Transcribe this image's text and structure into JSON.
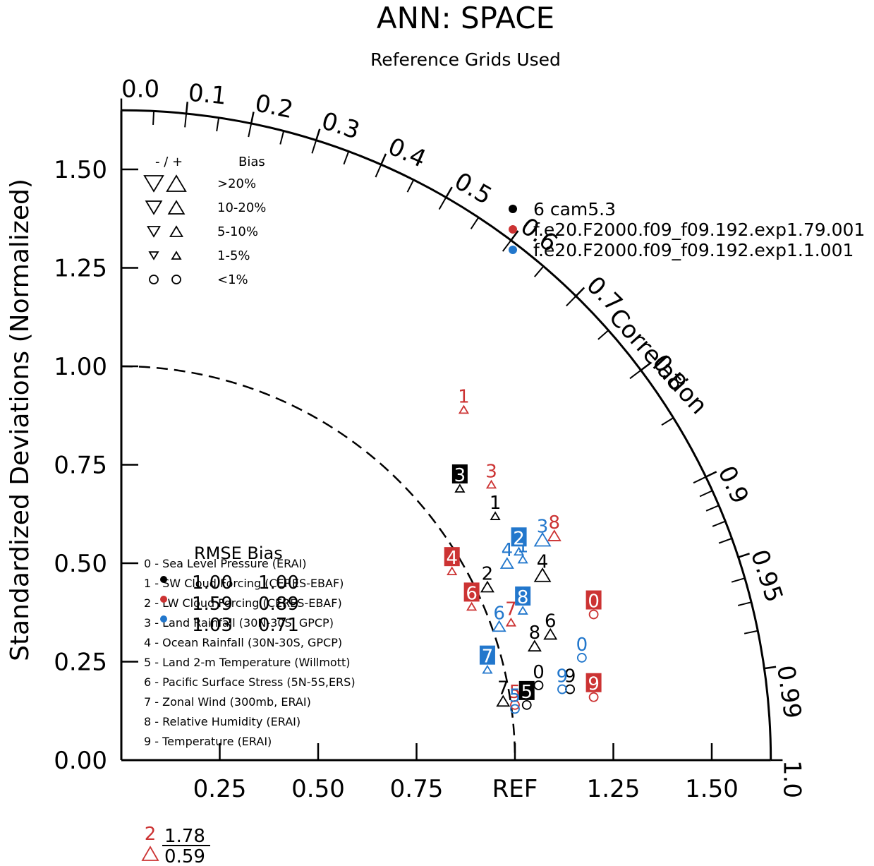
{
  "chart_data": {
    "type": "taylor",
    "title": "ANN: SPACE",
    "subtitle": "Reference Grids Used",
    "ylabel": "Standardized Deviations (Normalized)",
    "axis_max": 1.65,
    "y_ticks": [
      "0.00",
      "0.25",
      "0.50",
      "0.75",
      "1.00",
      "1.25",
      "1.50"
    ],
    "x_ticks": [
      "0.25",
      "0.50",
      "0.75",
      "REF",
      "1.25",
      "1.50"
    ],
    "correlation_label": "Correlation",
    "correlation_ticks": [
      {
        "r": 0.0,
        "label": "0.0"
      },
      {
        "r": 0.1,
        "label": "0.1"
      },
      {
        "r": 0.2,
        "label": "0.2"
      },
      {
        "r": 0.3,
        "label": "0.3"
      },
      {
        "r": 0.4,
        "label": "0.4"
      },
      {
        "r": 0.5,
        "label": "0.5"
      },
      {
        "r": 0.6,
        "label": "0.6"
      },
      {
        "r": 0.7,
        "label": "0.7"
      },
      {
        "r": 0.8,
        "label": "0.8"
      },
      {
        "r": 0.9,
        "label": "0.9"
      },
      {
        "r": 0.95,
        "label": "0.95"
      },
      {
        "r": 0.99,
        "label": "0.99"
      },
      {
        "r": 1.0,
        "label": "1.0"
      }
    ],
    "series": [
      {
        "name": "6 cam5.3",
        "color": "#000000"
      },
      {
        "name": "f.e20.F2000.f09_f09.192.exp1.79.001",
        "color": "#cc3333"
      },
      {
        "name": "f.e20.F2000.f09_f09.192.exp1.1.001",
        "color": "#2277cc"
      }
    ],
    "variables": [
      "0 - Sea Level Pressure (ERAI)",
      "1 - SW Cloud Forcing (CERES-EBAF)",
      "2 - LW Cloud Forcing (CERES-EBAF)",
      "3 - Land Rainfall (30N-30S, GPCP)",
      "4 - Ocean Rainfall (30N-30S, GPCP)",
      "5 - Land 2-m Temperature (Willmott)",
      "6 - Pacific Surface Stress (5N-5S,ERS)",
      "7 - Zonal Wind (300mb, ERAI)",
      "8 - Relative Humidity (ERAI)",
      "9 - Temperature (ERAI)"
    ],
    "bias_legend": {
      "header_sign": "- / +",
      "header_bias": "Bias",
      "rows": [
        ">20%",
        "10-20%",
        "5-10%",
        "1-5%",
        "<1%"
      ]
    },
    "rmse_table": {
      "header": "RMSE Bias",
      "rows": [
        {
          "rmse": "1.00",
          "bias": "1.00"
        },
        {
          "rmse": "1.59",
          "bias": "0.89"
        },
        {
          "rmse": "1.03",
          "bias": "0.71"
        }
      ]
    },
    "offscale": {
      "label": "2",
      "rmse": "1.78",
      "bias": "0.59"
    },
    "points": [
      {
        "s": 0,
        "v": "0",
        "x": 1.06,
        "y": 0.19,
        "box": false,
        "m": "circle"
      },
      {
        "s": 0,
        "v": "1",
        "x": 0.95,
        "y": 0.62,
        "box": false,
        "m": "tri-up-small"
      },
      {
        "s": 0,
        "v": "2",
        "x": 0.93,
        "y": 0.44,
        "box": false,
        "m": "tri-up"
      },
      {
        "s": 0,
        "v": "3",
        "x": 0.86,
        "y": 0.69,
        "box": true,
        "m": "tri-up-small"
      },
      {
        "s": 0,
        "v": "4",
        "x": 1.07,
        "y": 0.47,
        "box": false,
        "m": "tri-up-large"
      },
      {
        "s": 0,
        "v": "5",
        "x": 1.03,
        "y": 0.14,
        "box": true,
        "m": "circle"
      },
      {
        "s": 0,
        "v": "6",
        "x": 1.09,
        "y": 0.32,
        "box": false,
        "m": "tri-up"
      },
      {
        "s": 0,
        "v": "7",
        "x": 0.97,
        "y": 0.15,
        "box": false,
        "m": "tri-up"
      },
      {
        "s": 0,
        "v": "8",
        "x": 1.05,
        "y": 0.29,
        "box": false,
        "m": "tri-up"
      },
      {
        "s": 0,
        "v": "9",
        "x": 1.14,
        "y": 0.18,
        "box": false,
        "m": "circle"
      },
      {
        "s": 1,
        "v": "0",
        "x": 1.2,
        "y": 0.37,
        "box": true,
        "m": "circle"
      },
      {
        "s": 1,
        "v": "1",
        "x": 0.87,
        "y": 0.89,
        "box": false,
        "m": "tri-up-small"
      },
      {
        "s": 1,
        "v": "2",
        "x": 0.21,
        "y": -0.2,
        "box": false,
        "m": "none"
      },
      {
        "s": 1,
        "v": "3",
        "x": 0.94,
        "y": 0.7,
        "box": false,
        "m": "tri-up-small"
      },
      {
        "s": 1,
        "v": "4",
        "x": 0.84,
        "y": 0.48,
        "box": true,
        "m": "tri-up-small"
      },
      {
        "s": 1,
        "v": "5",
        "x": 1.0,
        "y": 0.14,
        "box": false,
        "m": "circle"
      },
      {
        "s": 1,
        "v": "6",
        "x": 0.89,
        "y": 0.39,
        "box": true,
        "m": "tri-up-small"
      },
      {
        "s": 1,
        "v": "7",
        "x": 0.99,
        "y": 0.35,
        "box": false,
        "m": "tri-up-small"
      },
      {
        "s": 1,
        "v": "8",
        "x": 1.1,
        "y": 0.57,
        "box": false,
        "m": "tri-up"
      },
      {
        "s": 1,
        "v": "9",
        "x": 1.2,
        "y": 0.16,
        "box": true,
        "m": "circle"
      },
      {
        "s": 2,
        "v": "0",
        "x": 1.17,
        "y": 0.26,
        "box": false,
        "m": "circle"
      },
      {
        "s": 2,
        "v": "1",
        "x": 1.02,
        "y": 0.51,
        "box": false,
        "m": "tri-up-small"
      },
      {
        "s": 2,
        "v": "2",
        "x": 1.01,
        "y": 0.53,
        "box": true,
        "m": "tri-up-small"
      },
      {
        "s": 2,
        "v": "3",
        "x": 1.07,
        "y": 0.56,
        "box": false,
        "m": "tri-up-large"
      },
      {
        "s": 2,
        "v": "4",
        "x": 0.98,
        "y": 0.5,
        "box": false,
        "m": "tri-up"
      },
      {
        "s": 2,
        "v": "5",
        "x": 1.0,
        "y": 0.13,
        "box": false,
        "m": "circle"
      },
      {
        "s": 2,
        "v": "6",
        "x": 0.96,
        "y": 0.34,
        "box": false,
        "m": "tri-up"
      },
      {
        "s": 2,
        "v": "7",
        "x": 0.93,
        "y": 0.23,
        "box": true,
        "m": "tri-up-small"
      },
      {
        "s": 2,
        "v": "8",
        "x": 1.02,
        "y": 0.38,
        "box": true,
        "m": "tri-up-small"
      },
      {
        "s": 2,
        "v": "9",
        "x": 1.12,
        "y": 0.18,
        "box": false,
        "m": "circle"
      }
    ]
  }
}
